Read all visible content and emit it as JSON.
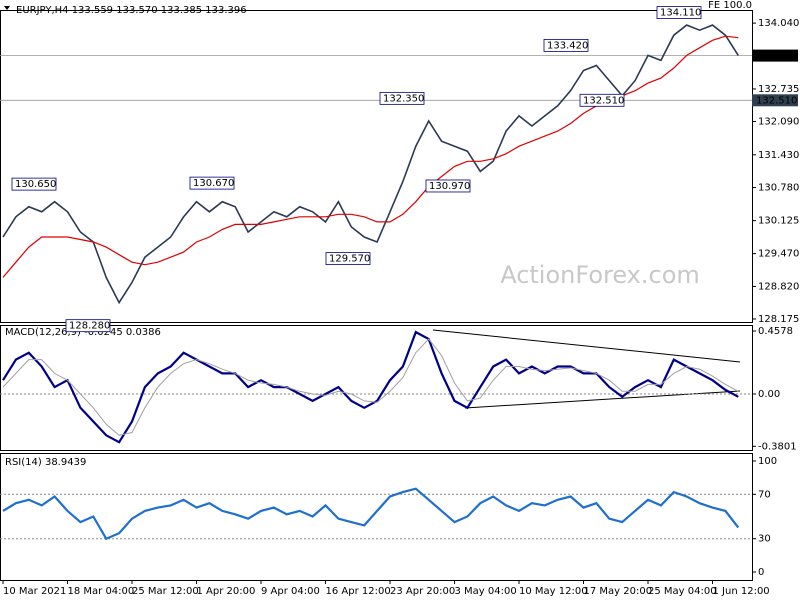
{
  "chart_data": [
    {
      "type": "line",
      "title": "EURJPY,H4 133.559 133.570 133.385 133.396",
      "corner_label": "FE 100.0",
      "watermark": "ActionForex.com",
      "ylim": [
        128.115,
        134.3
      ],
      "yticks": [
        {
          "value": 134.04,
          "label": "134.040"
        },
        132.735,
        {
          "value": 132.09,
          "label": "132.090"
        },
        {
          "value": 131.43,
          "label": "131.430"
        },
        {
          "value": 130.78,
          "label": "130.780"
        },
        130.125,
        {
          "value": 129.47,
          "label": "129.470"
        },
        {
          "value": 128.82,
          "label": "128.820"
        },
        128.175
      ],
      "price_lines": [
        {
          "value": 133.396,
          "label": "133.396",
          "color": "#000000"
        },
        {
          "value": 132.51,
          "label": "132.510",
          "color": "#2f3f4f"
        }
      ],
      "annotations": [
        {
          "value": 130.65,
          "label": "130.650"
        },
        {
          "value": 128.28,
          "label": "128.280"
        },
        {
          "value": 130.67,
          "label": "130.670"
        },
        {
          "value": 129.57,
          "label": "129.570"
        },
        {
          "value": 132.35,
          "label": "132.350"
        },
        {
          "value": 130.97,
          "label": "130.970"
        },
        {
          "value": 133.42,
          "label": "133.420"
        },
        {
          "value": 132.51,
          "label": "132.510"
        },
        {
          "value": 134.11,
          "label": "134.110"
        }
      ],
      "series": [
        {
          "color": "#2b3a55",
          "values": [
            129.8,
            130.2,
            130.4,
            130.3,
            130.5,
            130.3,
            129.9,
            129.7,
            129.0,
            128.5,
            128.9,
            129.4,
            129.6,
            129.8,
            130.2,
            130.5,
            130.3,
            130.5,
            130.4,
            129.9,
            130.1,
            130.3,
            130.2,
            130.4,
            130.3,
            130.1,
            130.5,
            130.0,
            129.8,
            129.7,
            130.3,
            130.9,
            131.6,
            132.1,
            131.7,
            131.6,
            131.5,
            131.1,
            131.3,
            131.9,
            132.2,
            132.0,
            132.2,
            132.4,
            132.7,
            133.1,
            133.2,
            132.9,
            132.6,
            132.9,
            133.4,
            133.3,
            133.8,
            134.0,
            133.9,
            134.0,
            133.8,
            133.4
          ]
        },
        {
          "color": "#e00000",
          "values": [
            129.0,
            129.3,
            129.6,
            129.8,
            129.8,
            129.8,
            129.75,
            129.7,
            129.6,
            129.45,
            129.3,
            129.25,
            129.3,
            129.4,
            129.5,
            129.7,
            129.8,
            129.95,
            130.05,
            130.05,
            130.05,
            130.1,
            130.15,
            130.2,
            130.2,
            130.2,
            130.25,
            130.25,
            130.2,
            130.1,
            130.1,
            130.25,
            130.5,
            130.8,
            131.0,
            131.2,
            131.3,
            131.3,
            131.35,
            131.45,
            131.6,
            131.7,
            131.8,
            131.9,
            132.05,
            132.25,
            132.4,
            132.5,
            132.6,
            132.7,
            132.85,
            132.95,
            133.15,
            133.4,
            133.55,
            133.7,
            133.78,
            133.75
          ]
        }
      ]
    },
    {
      "type": "line",
      "title": "MACD(12,26,9) -0.0245 0.0386",
      "ylim": [
        -0.407,
        0.5016
      ],
      "yticks": [
        0.4578,
        {
          "value": 0,
          "label": "0.00"
        },
        -0.3801
      ],
      "series": [
        {
          "color": "#00008b",
          "values": [
            0.1,
            0.25,
            0.3,
            0.2,
            0.05,
            0.1,
            -0.1,
            -0.2,
            -0.3,
            -0.35,
            -0.2,
            0.05,
            0.15,
            0.2,
            0.3,
            0.25,
            0.2,
            0.15,
            0.15,
            0.05,
            0.1,
            0.05,
            0.05,
            0.0,
            -0.05,
            0.0,
            0.05,
            -0.05,
            -0.1,
            -0.05,
            0.1,
            0.2,
            0.45,
            0.4,
            0.15,
            -0.05,
            -0.1,
            0.05,
            0.2,
            0.25,
            0.15,
            0.2,
            0.15,
            0.2,
            0.2,
            0.15,
            0.15,
            0.05,
            -0.02,
            0.05,
            0.1,
            0.05,
            0.25,
            0.2,
            0.15,
            0.1,
            0.03,
            -0.02
          ]
        },
        {
          "color": "#a0a0a0",
          "values": [
            0.05,
            0.15,
            0.25,
            0.25,
            0.15,
            0.1,
            0.0,
            -0.1,
            -0.22,
            -0.3,
            -0.28,
            -0.1,
            0.05,
            0.15,
            0.22,
            0.25,
            0.22,
            0.18,
            0.15,
            0.1,
            0.08,
            0.07,
            0.05,
            0.02,
            0.0,
            -0.01,
            0.02,
            0.0,
            -0.05,
            -0.06,
            0.02,
            0.12,
            0.3,
            0.4,
            0.28,
            0.08,
            -0.05,
            -0.03,
            0.1,
            0.2,
            0.2,
            0.18,
            0.17,
            0.18,
            0.19,
            0.17,
            0.15,
            0.1,
            0.02,
            0.02,
            0.07,
            0.07,
            0.15,
            0.2,
            0.18,
            0.13,
            0.07,
            0.02
          ]
        }
      ]
    },
    {
      "type": "line",
      "title": "RSI(14) 38.9439",
      "ylim": [
        -7.2,
        107.2
      ],
      "yticks": [
        100,
        70,
        30,
        0
      ],
      "levels": [
        70,
        30
      ],
      "categories": [
        "10 Mar 2021",
        null,
        null,
        null,
        null,
        "18 Mar 04:00",
        null,
        null,
        null,
        null,
        "25 Mar 12:00",
        null,
        null,
        null,
        null,
        "1 Apr 20:00",
        null,
        null,
        null,
        null,
        "9 Apr 04:00",
        null,
        null,
        null,
        null,
        "16 Apr 12:00",
        null,
        null,
        null,
        null,
        "23 Apr 20:00",
        null,
        null,
        null,
        null,
        "3 May 04:00",
        null,
        null,
        null,
        null,
        "10 May 12:00",
        null,
        null,
        null,
        null,
        "17 May 20:00",
        null,
        null,
        null,
        null,
        "25 May 04:00",
        null,
        null,
        null,
        null,
        "1 Jun 12:00",
        null,
        null
      ],
      "series": [
        {
          "color": "#1e6fd0",
          "values": [
            55,
            62,
            65,
            60,
            68,
            55,
            45,
            50,
            30,
            35,
            48,
            55,
            58,
            60,
            65,
            58,
            62,
            55,
            52,
            48,
            55,
            58,
            52,
            55,
            50,
            60,
            48,
            45,
            42,
            55,
            68,
            72,
            75,
            65,
            55,
            45,
            50,
            62,
            68,
            60,
            55,
            62,
            60,
            65,
            68,
            58,
            62,
            48,
            45,
            55,
            65,
            60,
            72,
            68,
            62,
            58,
            55,
            40
          ]
        }
      ]
    }
  ]
}
